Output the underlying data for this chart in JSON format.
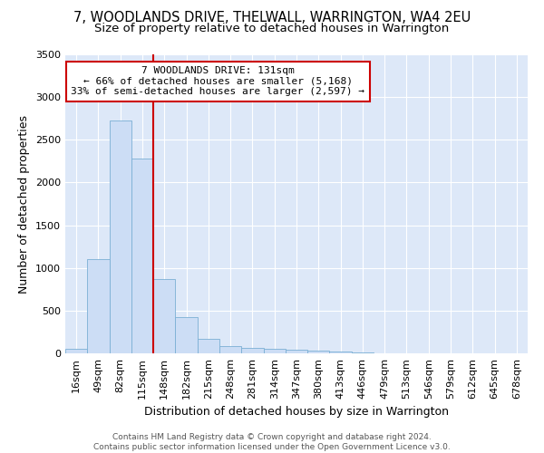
{
  "title1": "7, WOODLANDS DRIVE, THELWALL, WARRINGTON, WA4 2EU",
  "title2": "Size of property relative to detached houses in Warrington",
  "xlabel": "Distribution of detached houses by size in Warrington",
  "ylabel": "Number of detached properties",
  "categories": [
    "16sqm",
    "49sqm",
    "82sqm",
    "115sqm",
    "148sqm",
    "182sqm",
    "215sqm",
    "248sqm",
    "281sqm",
    "314sqm",
    "347sqm",
    "380sqm",
    "413sqm",
    "446sqm",
    "479sqm",
    "513sqm",
    "546sqm",
    "579sqm",
    "612sqm",
    "645sqm",
    "678sqm"
  ],
  "values": [
    50,
    1100,
    2730,
    2280,
    870,
    420,
    170,
    90,
    60,
    55,
    40,
    30,
    20,
    10,
    5,
    0,
    0,
    0,
    0,
    0,
    0
  ],
  "bar_color": "#ccddf5",
  "bar_edge_color": "#7bafd4",
  "vline_color": "#cc0000",
  "annotation_line1": "7 WOODLANDS DRIVE: 131sqm",
  "annotation_line2": "← 66% of detached houses are smaller (5,168)",
  "annotation_line3": "33% of semi-detached houses are larger (2,597) →",
  "annotation_box_color": "#ffffff",
  "annotation_box_edge_color": "#cc0000",
  "ylim": [
    0,
    3500
  ],
  "yticks": [
    0,
    500,
    1000,
    1500,
    2000,
    2500,
    3000,
    3500
  ],
  "footnote": "Contains HM Land Registry data © Crown copyright and database right 2024.\nContains public sector information licensed under the Open Government Licence v3.0.",
  "plot_bg_color": "#dde8f8",
  "title_fontsize": 10.5,
  "subtitle_fontsize": 9.5,
  "label_fontsize": 9,
  "tick_fontsize": 8,
  "footnote_fontsize": 6.5
}
